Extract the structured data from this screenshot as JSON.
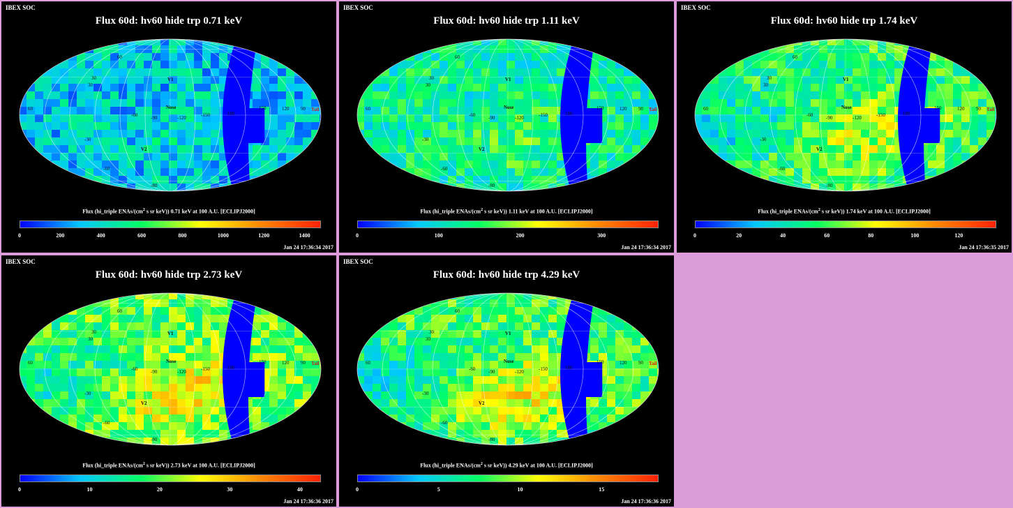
{
  "colors": {
    "background": "#dc9cda",
    "panel_background": "#000000",
    "colormap": [
      "#0000ff",
      "#00c8ff",
      "#00ff66",
      "#ffff00",
      "#ff8800",
      "#ff2200"
    ],
    "masked_sector": "#0000ff"
  },
  "panels": [
    {
      "header": "IBEX SOC",
      "title": "Flux 60d: hv60 hide trp 0.71 keV",
      "colorbar_prefix": "Flux (hi_triple ENAs/(cm",
      "colorbar_suffix": " s sr keV)) 0.71 keV at 100 A.U. [ECLIPJ2000]",
      "ticks": [
        "0",
        "200",
        "400",
        "600",
        "800",
        "1000",
        "1200",
        "1400"
      ],
      "tick_values": [
        0,
        200,
        400,
        600,
        800,
        1000,
        1200,
        1400
      ],
      "scale_max": 1480,
      "timestamp": "Jan 24 17:36:34 2017",
      "mean_level": 0.22,
      "variant": 0
    },
    {
      "header": "IBEX SOC",
      "title": "Flux 60d: hv60 hide trp 1.11 keV",
      "colorbar_prefix": "Flux (hi_triple ENAs/(cm",
      "colorbar_suffix": " s sr keV)) 1.11 keV at 100 A.U. [ECLIPJ2000]",
      "ticks": [
        "0",
        "100",
        "200",
        "300"
      ],
      "tick_values": [
        0,
        100,
        200,
        300
      ],
      "scale_max": 370,
      "timestamp": "Jan 24 17:36:34 2017",
      "mean_level": 0.33,
      "variant": 1
    },
    {
      "header": "IBEX SOC",
      "title": "Flux 60d: hv60 hide trp 1.74 keV",
      "colorbar_prefix": "Flux (hi_triple ENAs/(cm",
      "colorbar_suffix": " s sr keV)) 1.74 keV at 100 A.U. [ECLIPJ2000]",
      "ticks": [
        "0",
        "20",
        "40",
        "60",
        "80",
        "100",
        "120"
      ],
      "tick_values": [
        0,
        20,
        40,
        60,
        80,
        100,
        120
      ],
      "scale_max": 137,
      "timestamp": "Jan 24 17:36:35 2017",
      "mean_level": 0.4,
      "variant": 2
    },
    {
      "header": "IBEX SOC",
      "title": "Flux 60d: hv60 hide trp 2.73 keV",
      "colorbar_prefix": "Flux (hi_triple ENAs/(cm",
      "colorbar_suffix": " s sr keV)) 2.73 keV at 100 A.U. [ECLIPJ2000]",
      "ticks": [
        "0",
        "10",
        "20",
        "30",
        "40"
      ],
      "tick_values": [
        0,
        10,
        20,
        30,
        40
      ],
      "scale_max": 43,
      "timestamp": "Jan 24 17:36:36 2017",
      "mean_level": 0.45,
      "variant": 3
    },
    {
      "header": "IBEX SOC",
      "title": "Flux 60d: hv60 hide trp 4.29 keV",
      "colorbar_prefix": "Flux (hi_triple ENAs/(cm",
      "colorbar_suffix": " s sr keV)) 4.29 keV at 100 A.U. [ECLIPJ2000]",
      "ticks": [
        "0",
        "5",
        "10",
        "15"
      ],
      "tick_values": [
        0,
        5,
        10,
        15
      ],
      "scale_max": 18.5,
      "timestamp": "Jan 24 17:36:36 2017",
      "mean_level": 0.42,
      "variant": 4
    }
  ],
  "map_labels": {
    "lon_labels": [
      "60",
      "30",
      "-60",
      "-90",
      "-120",
      "-150",
      "180",
      "150",
      "120",
      "90"
    ],
    "lat_labels": [
      "60",
      "30",
      "-30",
      "-60",
      "-80"
    ],
    "markers": [
      "V1",
      "V2",
      "Nose",
      "Tail"
    ]
  }
}
